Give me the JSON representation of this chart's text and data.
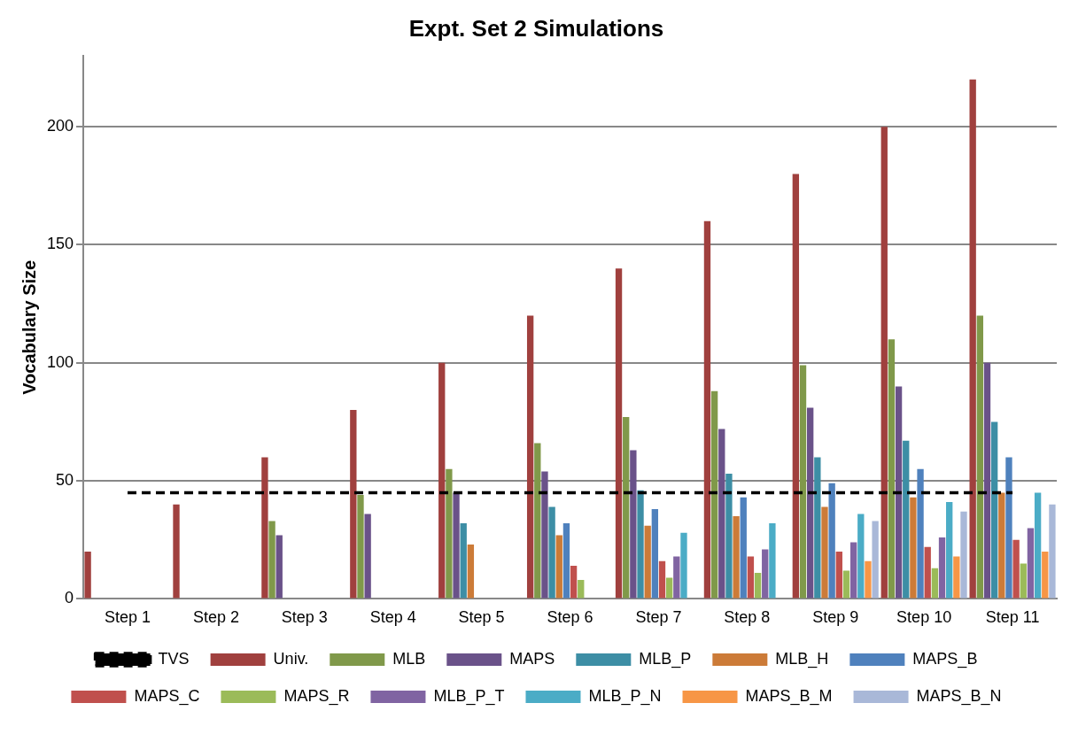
{
  "chart_data": {
    "type": "bar",
    "title": "Expt. Set 2 Simulations",
    "ylabel": "Vocabulary Size",
    "categories": [
      "Step 1",
      "Step 2",
      "Step 3",
      "Step 4",
      "Step 5",
      "Step 6",
      "Step 7",
      "Step 8",
      "Step 9",
      "Step 10",
      "Step 11"
    ],
    "series": [
      {
        "name": "Univ.",
        "color": "#a0403e",
        "values": [
          20,
          40,
          60,
          80,
          100,
          120,
          140,
          160,
          180,
          200,
          220
        ]
      },
      {
        "name": "MLB",
        "color": "#80994a",
        "values": [
          null,
          null,
          33,
          44,
          55,
          66,
          77,
          88,
          99,
          110,
          120
        ]
      },
      {
        "name": "MAPS",
        "color": "#6a5289",
        "values": [
          null,
          null,
          27,
          36,
          45,
          54,
          63,
          72,
          81,
          90,
          100
        ]
      },
      {
        "name": "MLB_P",
        "color": "#3d8ea5",
        "values": [
          null,
          null,
          null,
          null,
          32,
          39,
          46,
          53,
          60,
          67,
          75
        ]
      },
      {
        "name": "MLB_H",
        "color": "#cc7b38",
        "values": [
          null,
          null,
          null,
          null,
          23,
          27,
          31,
          35,
          39,
          43,
          45
        ]
      },
      {
        "name": "MAPS_B",
        "color": "#4f81bd",
        "values": [
          null,
          null,
          null,
          null,
          null,
          32,
          38,
          43,
          49,
          55,
          60
        ]
      },
      {
        "name": "MAPS_C",
        "color": "#c0504d",
        "values": [
          null,
          null,
          null,
          null,
          null,
          14,
          16,
          18,
          20,
          22,
          25
        ]
      },
      {
        "name": "MAPS_R",
        "color": "#9bbb59",
        "values": [
          null,
          null,
          null,
          null,
          null,
          8,
          9,
          11,
          12,
          13,
          15
        ]
      },
      {
        "name": "MLB_P_T",
        "color": "#8064a2",
        "values": [
          null,
          null,
          null,
          null,
          null,
          null,
          18,
          21,
          24,
          26,
          30
        ]
      },
      {
        "name": "MLB_P_N",
        "color": "#4bacc6",
        "values": [
          null,
          null,
          null,
          null,
          null,
          null,
          28,
          32,
          36,
          41,
          45
        ]
      },
      {
        "name": "MAPS_B_M",
        "color": "#f79646",
        "values": [
          null,
          null,
          null,
          null,
          null,
          null,
          null,
          null,
          16,
          18,
          20
        ]
      },
      {
        "name": "MAPS_B_N",
        "color": "#a9b8d8",
        "values": [
          null,
          null,
          null,
          null,
          null,
          null,
          null,
          null,
          33,
          37,
          40
        ]
      },
      {
        "name": "TVS",
        "type": "line",
        "color": "#000000",
        "line_style": "dashed",
        "marker": "none",
        "values": [
          45,
          45,
          45,
          45,
          45,
          45,
          45,
          45,
          45,
          45,
          45
        ]
      }
    ],
    "ylim": [
      0,
      230
    ],
    "yticks": [
      0,
      50,
      100,
      150,
      200
    ],
    "grid": "y",
    "legend": "bottom"
  }
}
